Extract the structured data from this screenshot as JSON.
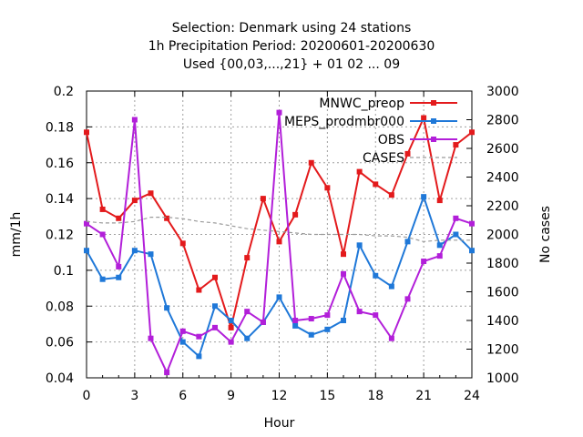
{
  "chart_data": {
    "type": "line",
    "title": [
      "Selection: Denmark using    24 stations",
      "1h Precipitation    Period: 20200601-20200630",
      "Used {00,03,...,21} + 01 02 ... 09"
    ],
    "xlabel": "Hour",
    "ylabel": "mm/1h",
    "y2label": "No cases",
    "xlim": [
      0,
      24
    ],
    "ylim": [
      0.04,
      0.2
    ],
    "y2lim": [
      1000,
      3000
    ],
    "xticks": [
      "0",
      "3",
      "6",
      "9",
      "12",
      "15",
      "18",
      "21",
      "24"
    ],
    "yticks": [
      "0.04",
      "0.06",
      "0.08",
      "0.1",
      "0.12",
      "0.14",
      "0.16",
      "0.18",
      "0.2"
    ],
    "y2ticks": [
      "1000",
      "1200",
      "1400",
      "1600",
      "1800",
      "2000",
      "2200",
      "2400",
      "2600",
      "2800",
      "3000"
    ],
    "grid": true,
    "legend_position": "top-right",
    "x": [
      0,
      1,
      2,
      3,
      4,
      5,
      6,
      7,
      8,
      9,
      10,
      11,
      12,
      13,
      14,
      15,
      16,
      17,
      18,
      19,
      20,
      21,
      22,
      23,
      24
    ],
    "series": [
      {
        "name": "MNWC_preop",
        "color": "#e31a1c",
        "marker": "square",
        "axis": "y",
        "values": [
          0.177,
          0.134,
          0.129,
          0.139,
          0.143,
          0.129,
          0.115,
          0.089,
          0.096,
          0.068,
          0.107,
          0.14,
          0.116,
          0.131,
          0.16,
          0.146,
          0.109,
          0.155,
          0.148,
          0.142,
          0.165,
          0.185,
          0.139,
          0.17,
          0.177
        ]
      },
      {
        "name": "MEPS_prodmbr000",
        "color": "#1f78d8",
        "marker": "square",
        "axis": "y",
        "values": [
          0.111,
          0.095,
          0.096,
          0.111,
          0.109,
          0.079,
          0.06,
          0.052,
          0.08,
          0.072,
          0.062,
          0.071,
          0.085,
          0.069,
          0.064,
          0.067,
          0.072,
          0.114,
          0.097,
          0.091,
          0.116,
          0.141,
          0.114,
          0.12,
          0.111
        ]
      },
      {
        "name": "OBS",
        "color": "#b21fd9",
        "marker": "square",
        "axis": "y",
        "values": [
          0.126,
          0.12,
          0.102,
          0.184,
          0.062,
          0.043,
          0.066,
          0.063,
          0.068,
          0.06,
          0.077,
          0.071,
          0.188,
          0.072,
          0.073,
          0.075,
          0.098,
          0.077,
          0.075,
          0.062,
          0.084,
          0.105,
          0.108,
          0.129,
          0.126
        ]
      },
      {
        "name": "CASES",
        "color": "#9a9a9a",
        "marker": "none",
        "dash": true,
        "axis": "y2",
        "values": [
          2090,
          2080,
          2080,
          2090,
          2120,
          2120,
          2110,
          2090,
          2080,
          2060,
          2040,
          2030,
          2020,
          2010,
          2000,
          2000,
          2000,
          2000,
          1990,
          1990,
          1980,
          1950,
          1960,
          1960,
          1960
        ]
      }
    ]
  }
}
